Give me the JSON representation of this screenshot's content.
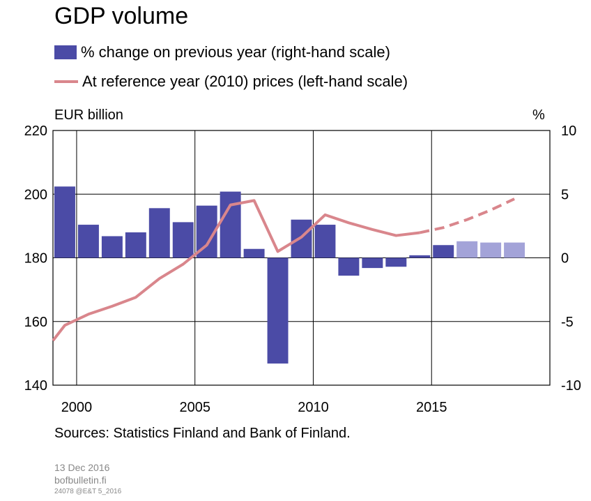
{
  "chart_data": {
    "type": "bar",
    "title": "GDP volume",
    "left_axis_label": "EUR billion",
    "right_axis_label": "%",
    "x": [
      1999,
      2000,
      2001,
      2002,
      2003,
      2004,
      2005,
      2006,
      2007,
      2008,
      2009,
      2010,
      2011,
      2012,
      2013,
      2014,
      2015,
      2016,
      2017,
      2018,
      2019
    ],
    "x_ticks": [
      "2000",
      "2005",
      "2010",
      "2015"
    ],
    "left_ylim": [
      140,
      220
    ],
    "left_ticks": [
      "140",
      "160",
      "180",
      "200",
      "220"
    ],
    "right_ylim": [
      -10,
      10
    ],
    "right_ticks": [
      "-10",
      "-5",
      "0",
      "5",
      "10"
    ],
    "grid": true,
    "legend_placement": "top-left",
    "series": [
      {
        "name": "% change on previous year (right-hand scale)",
        "kind": "bar",
        "axis": "right",
        "color": "#4b4ba6",
        "forecast_color": "#a3a3d8",
        "categories": [
          1999,
          2000,
          2001,
          2002,
          2003,
          2004,
          2005,
          2006,
          2007,
          2008,
          2009,
          2010,
          2011,
          2012,
          2013,
          2014,
          2015,
          2016,
          2017,
          2018,
          2019
        ],
        "values": [
          5.6,
          2.6,
          1.7,
          2.0,
          3.9,
          2.8,
          4.1,
          5.2,
          0.7,
          -8.3,
          3.0,
          2.6,
          -1.4,
          -0.8,
          -0.7,
          0.2,
          1.0,
          1.3,
          1.2,
          1.2,
          0
        ],
        "forecast_from": 2016
      },
      {
        "name": "At reference year (2010) prices (left-hand scale)",
        "kind": "line",
        "axis": "left",
        "color": "#d9868c",
        "x": [
          1999.0,
          1999.5,
          2000.5,
          2001.5,
          2002.5,
          2003.5,
          2004.5,
          2005.5,
          2006.5,
          2007.5,
          2008.5,
          2009.5,
          2010.5,
          2011.5,
          2012.5,
          2013.5,
          2014.5,
          2015.5,
          2016.5,
          2017.5,
          2018.5
        ],
        "values": [
          154.0,
          158.8,
          162.3,
          164.8,
          167.6,
          173.5,
          178.0,
          184.0,
          196.6,
          198.0,
          182.0,
          186.5,
          193.5,
          191.0,
          188.9,
          187.0,
          187.9,
          189.5,
          192.0,
          195.0,
          198.5
        ],
        "forecast_from_index": 16
      }
    ]
  },
  "source_text": "Sources: Statistics Finland and Bank of Finland.",
  "meta": {
    "date": "13 Dec 2016",
    "site": "bofbulletin.fi",
    "code": "24078 @E&T 5_2016"
  }
}
